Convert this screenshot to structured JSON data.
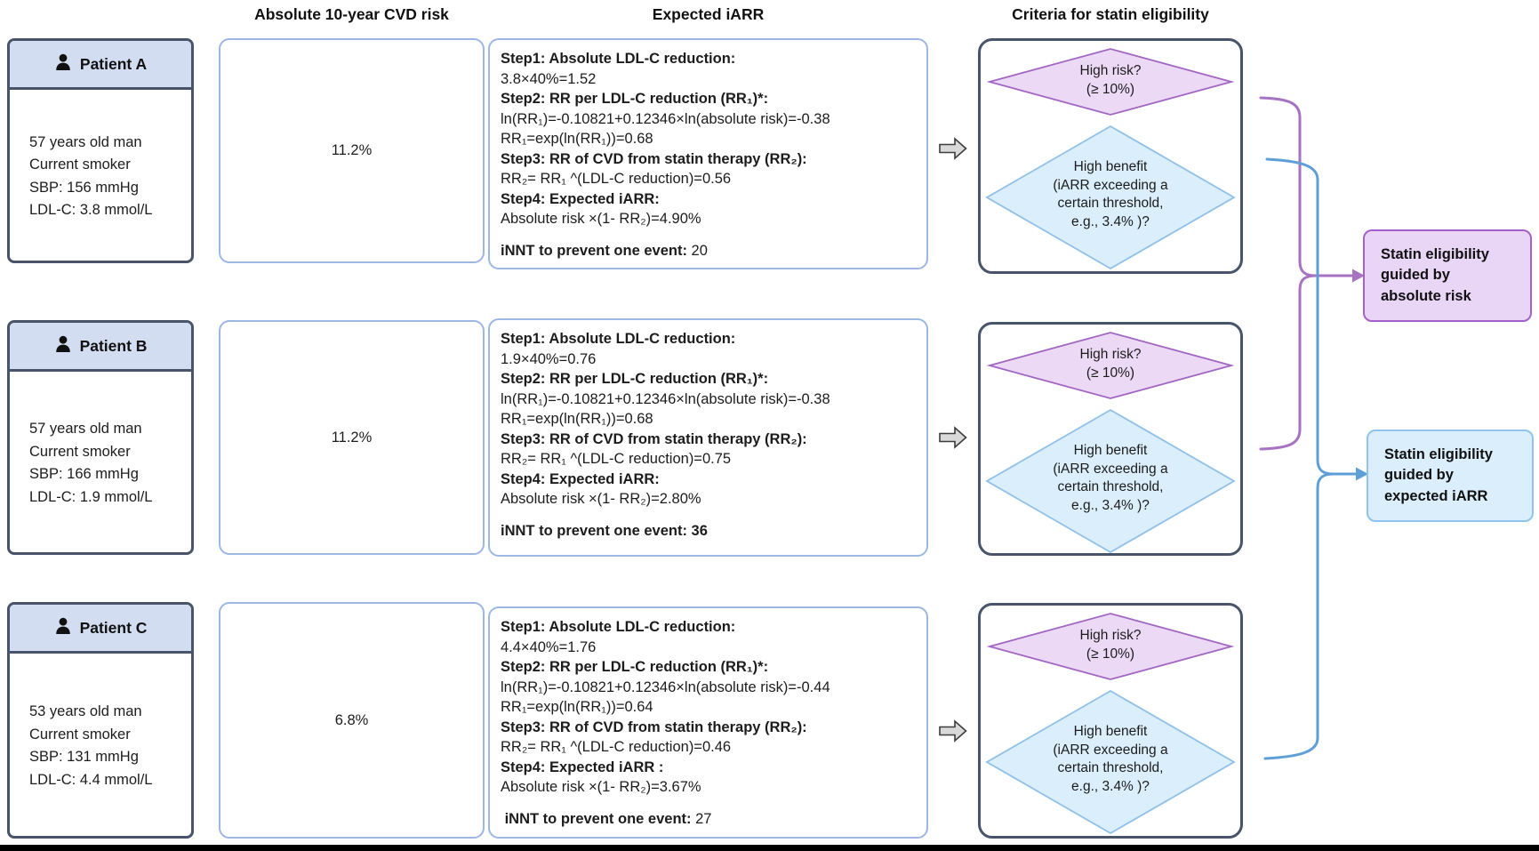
{
  "headers": {
    "risk": "Absolute 10-year CVD risk",
    "iarr": "Expected iARR",
    "criteria": "Criteria for statin eligibility"
  },
  "criteria": {
    "high_risk": [
      "High risk?",
      "(≥ 10%)"
    ],
    "high_benefit": [
      "High benefit",
      "(iARR exceeding a",
      "certain threshold,",
      "e.g., 3.4% )?"
    ]
  },
  "outcomes": {
    "absolute_risk": {
      "lines": [
        "Statin eligibility",
        "guided by",
        "absolute risk"
      ]
    },
    "expected_iarr": {
      "lines": [
        "Statin eligibility",
        "guided by",
        "expected iARR"
      ]
    }
  },
  "patients": [
    {
      "name": "Patient A",
      "details": [
        "57 years old man",
        "Current smoker",
        "SBP: 156 mmHg",
        "LDL-C: 3.8 mmol/L"
      ],
      "risk": "11.2%",
      "iarr": [
        {
          "b": "Step1: Absolute LDL-C reduction:",
          "r": ""
        },
        {
          "b": "",
          "r": "3.8×40%=1.52"
        },
        {
          "b": "Step2: RR per LDL-C reduction (RR₁)*:",
          "r": ""
        },
        {
          "b": "",
          "r": "ln(RR₁)=-0.10821+0.12346×ln(absolute risk)=-0.38"
        },
        {
          "b": "",
          "r": "RR₁=exp(ln(RR₁))=0.68"
        },
        {
          "b": "Step3: RR of CVD from statin therapy (RR₂):",
          "r": ""
        },
        {
          "b": "",
          "r": "RR₂= RR₁ ^(LDL-C reduction)=0.56"
        },
        {
          "b": "Step4: Expected iARR:",
          "r": ""
        },
        {
          "b": "",
          "r": "Absolute risk ×(1- RR₂)=4.90%"
        },
        {
          "b": "iNNT to prevent one event:",
          "r": " 20"
        }
      ]
    },
    {
      "name": "Patient B",
      "details": [
        "57 years old man",
        "Current smoker",
        "SBP: 166 mmHg",
        "LDL-C: 1.9 mmol/L"
      ],
      "risk": "11.2%",
      "iarr": [
        {
          "b": "Step1: Absolute LDL-C reduction:",
          "r": ""
        },
        {
          "b": "",
          "r": "1.9×40%=0.76"
        },
        {
          "b": "Step2: RR per LDL-C reduction (RR₁)*:",
          "r": ""
        },
        {
          "b": "",
          "r": "ln(RR₁)=-0.10821+0.12346×ln(absolute risk)=-0.38"
        },
        {
          "b": "",
          "r": "RR₁=exp(ln(RR₁))=0.68"
        },
        {
          "b": "Step3: RR of CVD from statin therapy (RR₂):",
          "r": ""
        },
        {
          "b": "",
          "r": "RR₂= RR₁ ^(LDL-C reduction)=0.75"
        },
        {
          "b": "Step4: Expected iARR:",
          "r": ""
        },
        {
          "b": "",
          "r": "Absolute risk ×(1- RR₂)=2.80%"
        },
        {
          "b": "iNNT to prevent one event: 36",
          "r": ""
        }
      ]
    },
    {
      "name": "Patient C",
      "details": [
        "53 years old man",
        "Current smoker",
        "SBP: 131 mmHg",
        "LDL-C: 4.4 mmol/L"
      ],
      "risk": "6.8%",
      "iarr": [
        {
          "b": "Step1: Absolute LDL-C reduction:",
          "r": ""
        },
        {
          "b": "",
          "r": "4.4×40%=1.76"
        },
        {
          "b": "Step2: RR per LDL-C reduction (RR₁)*:",
          "r": ""
        },
        {
          "b": "",
          "r": "ln(RR₁)=-0.10821+0.12346×ln(absolute risk)=-0.44"
        },
        {
          "b": "",
          "r": "RR₁=exp(ln(RR₁))=0.64"
        },
        {
          "b": "Step3: RR of CVD from statin therapy (RR₂):",
          "r": ""
        },
        {
          "b": "",
          "r": "RR₂= RR₁ ^(LDL-C reduction)=0.46"
        },
        {
          "b": "Step4: Expected iARR :",
          "r": ""
        },
        {
          "b": "",
          "r": "Absolute risk ×(1- RR₂)=3.67%"
        },
        {
          "b": " iNNT to prevent one event:",
          "r": " 27"
        }
      ]
    }
  ],
  "colors": {
    "dark_border": "#47546a",
    "light_blue_border": "#9cb7e4",
    "patient_header_fill": "#d3ddf1",
    "high_risk_fill": "#ecd9f5",
    "high_risk_stroke": "#a267c4",
    "high_benefit_fill": "#daeefb",
    "high_benefit_stroke": "#8fc0e9",
    "outcome_purple_fill": "#e9d6f7",
    "outcome_purple_stroke": "#a75fc9",
    "outcome_blue_fill": "#daeefb",
    "outcome_blue_stroke": "#8fc4ed",
    "connector_purple": "#a872c2",
    "connector_blue": "#5e9fd8",
    "flow_arrow_fill": "#d9d9d9"
  }
}
